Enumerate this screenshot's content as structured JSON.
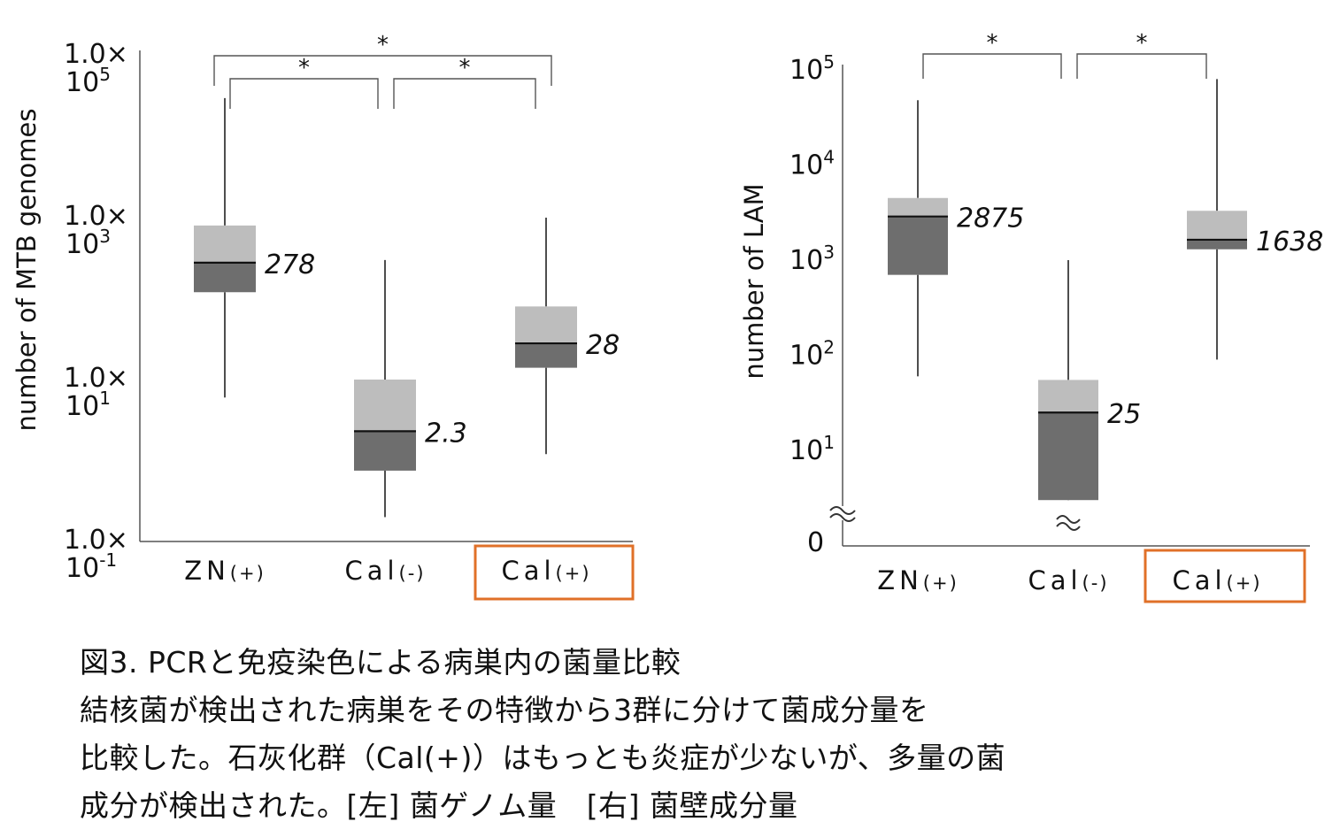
{
  "chart_data": [
    {
      "type": "box",
      "ylabel": "number of MTB genomes",
      "yscale": "log",
      "ylim": [
        0.1,
        100000
      ],
      "yticks": [
        {
          "value": 100000,
          "line1": "1.0×",
          "base": "10",
          "exp": "5"
        },
        {
          "value": 1000,
          "line1": "1.0×",
          "base": "10",
          "exp": "3"
        },
        {
          "value": 10,
          "line1": "1.0×",
          "base": "10",
          "exp": "1"
        },
        {
          "value": 0.1,
          "line1": "1.0×",
          "base": "10",
          "exp": "-1"
        }
      ],
      "categories": [
        {
          "main": "ZN",
          "sub": "(+)"
        },
        {
          "main": "Cal",
          "sub": "(-)"
        },
        {
          "main": "Cal",
          "sub": "(+)"
        }
      ],
      "highlight_index": 2,
      "boxes": [
        {
          "min": 6,
          "q1": 120,
          "median": 278,
          "q3": 800,
          "max": 30000,
          "label": "278"
        },
        {
          "min": 0.2,
          "q1": 0.75,
          "median": 2.3,
          "q3": 10,
          "max": 300,
          "label": "2.3"
        },
        {
          "min": 1.2,
          "q1": 14,
          "median": 28,
          "q3": 80,
          "max": 1000,
          "label": "28"
        }
      ],
      "brackets": [
        {
          "from": 0,
          "to": 2,
          "label": "*",
          "level": 2
        },
        {
          "from": 0,
          "to": 1,
          "label": "*",
          "level": 1
        },
        {
          "from": 1,
          "to": 2,
          "label": "*",
          "level": 1
        }
      ]
    },
    {
      "type": "box",
      "ylabel": "number of LAM",
      "yscale": "log",
      "ylim": [
        1,
        100000
      ],
      "axis_break": true,
      "yticks": [
        {
          "value": 100000,
          "base": "10",
          "exp": "5"
        },
        {
          "value": 10000,
          "base": "10",
          "exp": "4"
        },
        {
          "value": 1000,
          "base": "10",
          "exp": "3"
        },
        {
          "value": 100,
          "base": "10",
          "exp": "2"
        },
        {
          "value": 10,
          "base": "10",
          "exp": "1"
        },
        {
          "value": 0,
          "base": "0",
          "exp": ""
        }
      ],
      "categories": [
        {
          "main": "ZN",
          "sub": "(+)"
        },
        {
          "main": "Cal",
          "sub": "(-)"
        },
        {
          "main": "Cal",
          "sub": "(+)"
        }
      ],
      "highlight_index": 2,
      "boxes": [
        {
          "min": 60,
          "q1": 700,
          "median": 2875,
          "q3": 4500,
          "max": 48000,
          "label": "2875"
        },
        {
          "min": 0,
          "q1": 3,
          "median": 25,
          "q3": 55,
          "max": 1000,
          "label": "25"
        },
        {
          "min": 90,
          "q1": 1300,
          "median": 1638,
          "q3": 3300,
          "max": 80000,
          "label": "1638"
        }
      ],
      "brackets": [
        {
          "from": 0,
          "to": 1,
          "label": "*",
          "level": 1
        },
        {
          "from": 1,
          "to": 2,
          "label": "*",
          "level": 1
        }
      ]
    }
  ],
  "colors": {
    "box_upper": "#bdbdbd",
    "box_lower": "#6e6e6e",
    "line": "#222222",
    "highlight": "#e07028"
  },
  "caption": {
    "line1": "図3. PCRと免疫染色による病巣内の菌量比較",
    "line2": "結核菌が検出された病巣をその特徴から3群に分けて菌成分量を",
    "line3": "比較した。石灰化群（Cal(+)）はもっとも炎症が少ないが、多量の菌",
    "line4": "成分が検出された。[左] 菌ゲノム量　[右] 菌壁成分量"
  }
}
